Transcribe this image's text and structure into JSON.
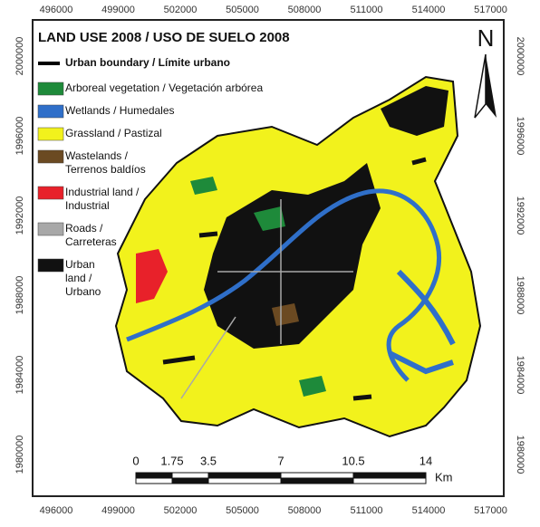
{
  "map": {
    "title": "LAND USE 2008 / USO DE SUELO 2008",
    "north": "N",
    "x_ticks": [
      "496000",
      "499000",
      "502000",
      "505000",
      "508000",
      "511000",
      "514000",
      "517000"
    ],
    "y_ticks": [
      "2000000",
      "1996000",
      "1992000",
      "1988000",
      "1984000",
      "1980000"
    ],
    "legend": [
      {
        "kind": "line",
        "color": "#000000",
        "label": [
          "Urban boundary / Límite urbano"
        ]
      },
      {
        "kind": "box",
        "color": "#1e8a3a",
        "label": [
          "Arboreal vegetation / Vegetación arbórea"
        ]
      },
      {
        "kind": "box",
        "color": "#2f6fc9",
        "label": [
          "Wetlands / Humedales"
        ]
      },
      {
        "kind": "box",
        "color": "#f2f21c",
        "label": [
          "Grassland / Pastizal"
        ]
      },
      {
        "kind": "box",
        "color": "#6b4a22",
        "label": [
          "Wastelands /",
          "Terrenos baldíos"
        ]
      },
      {
        "kind": "box",
        "color": "#e8212a",
        "label": [
          "Industrial land /",
          "Industrial"
        ]
      },
      {
        "kind": "box",
        "color": "#a8a8a8",
        "label": [
          "Roads /",
          "Carreteras"
        ]
      },
      {
        "kind": "box",
        "color": "#111111",
        "label": [
          "Urban",
          "land /",
          "Urbano"
        ]
      }
    ],
    "scale": {
      "labels": [
        "0",
        "1.75",
        "3.5",
        "7",
        "10.5",
        "14"
      ],
      "unit": "Km"
    }
  }
}
